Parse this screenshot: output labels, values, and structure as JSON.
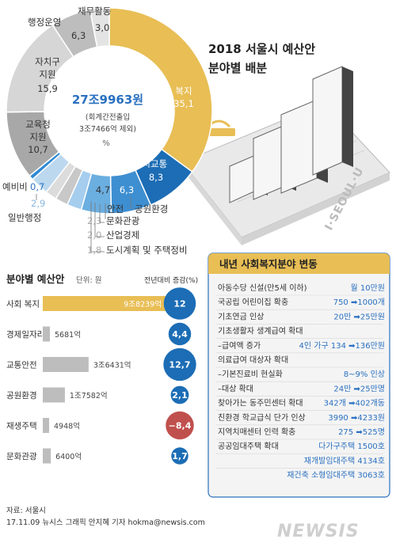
{
  "header": {
    "title_line1": "2018 서울시 예산안",
    "title_line2": "분야별 배분"
  },
  "donut": {
    "center_total": "27조9963원",
    "center_note1": "(회계간전출입",
    "center_note2": "3조7466억 제외)",
    "unit": "%"
  },
  "chart_data": [
    {
      "type": "pie",
      "title": "",
      "categories": [
        "복지",
        "도시교통",
        "공원환경",
        "안전",
        "문화관광",
        "산업경제",
        "도시계획 및 주택정비",
        "일반행정",
        "예비비",
        "교육청 지원",
        "자치구 지원",
        "행정운영",
        "재무활동"
      ],
      "values": [
        35.1,
        8.3,
        6.3,
        4.7,
        2.3,
        2.0,
        1.8,
        2.9,
        0.7,
        10.7,
        15.9,
        6.3,
        3.0
      ],
      "value_labels": [
        "35,1",
        "8,3",
        "6,3",
        "4,7",
        "2,3",
        "2,0",
        "1,8",
        "2,9",
        "0,7",
        "10,7",
        "15,9",
        "6,3",
        "3,0"
      ],
      "colors": [
        "#e8be55",
        "#1c6db5",
        "#3e8fd1",
        "#6baee0",
        "#a5cdee",
        "#c8c8c8",
        "#dcdcdc",
        "#bcd8ef",
        "#2f8ad5",
        "#a8a8a8",
        "#d6d6d6",
        "#bdbdbd",
        "#e4e4e4"
      ]
    },
    {
      "type": "bar",
      "title": "분야별 예산안",
      "unit_label": "단위: 원",
      "change_header": "전년대비 증감(%)",
      "categories": [
        "사회 복지",
        "경제일자리",
        "교통안전",
        "공원환경",
        "재생주택",
        "문화관광"
      ],
      "values_eok": [
        98239,
        5681,
        36431,
        17582,
        4948,
        6400
      ],
      "value_labels": [
        "9조8239억",
        "5681억",
        "3조6431억",
        "1조7582억",
        "4948억",
        "6400억"
      ],
      "change_pct": [
        12,
        4.4,
        12.7,
        2.1,
        -8.4,
        1.7
      ],
      "change_labels": [
        "12",
        "4,4",
        "12,7",
        "2,1",
        "−8,4",
        "1,7"
      ]
    }
  ],
  "welfare_box": {
    "title": "내년 사회복지분야 변동",
    "rows": [
      {
        "label": "아동수당 신설(만5세 이하)",
        "value": "월 10만원"
      },
      {
        "label": "국공립 어린이집 확충",
        "value": "750 ➡1000개"
      },
      {
        "label": "기초연금 인상",
        "value": "20만 ➡25만원"
      },
      {
        "label": "기초생활자 생계급여 확대",
        "value": ""
      },
      {
        "label": "–급여액 증가",
        "value": "4인 가구 134 ➡136만원"
      },
      {
        "label": "의료급여 대상자 확대",
        "value": ""
      },
      {
        "label": "–기본진료비 현실화",
        "value": "8~9% 인상"
      },
      {
        "label": "–대상 확대",
        "value": "24만 ➡25만명"
      },
      {
        "label": "찾아가는 동주민센터 확대",
        "value": "342개 ➡402개동"
      },
      {
        "label": "친환경 학교급식 단가 인상",
        "value": "3990 ➡4233원"
      },
      {
        "label": "지역치매센터 인력 확충",
        "value": "275 ➡525명"
      },
      {
        "label": "공공임대주택 확대",
        "value": "다가구주택 1500호"
      },
      {
        "label": "",
        "value": "재개발임대주택 4134호"
      },
      {
        "label": "",
        "value": "재건축 소형임대주택 3063호"
      }
    ]
  },
  "illustration": {
    "sign_text": "I·SEOUL·U"
  },
  "footer": {
    "source": "자료: 서울시",
    "credit": "17.11.09 뉴시스 그래픽 안지혜 기자 hokma@newsis.com",
    "logo": "NEWSIS"
  },
  "colors": {
    "accent_yellow": "#e8be55",
    "blue_dark": "#1c6db5",
    "blue_mid": "#3e8fd1",
    "negative_red": "#c0504d"
  }
}
